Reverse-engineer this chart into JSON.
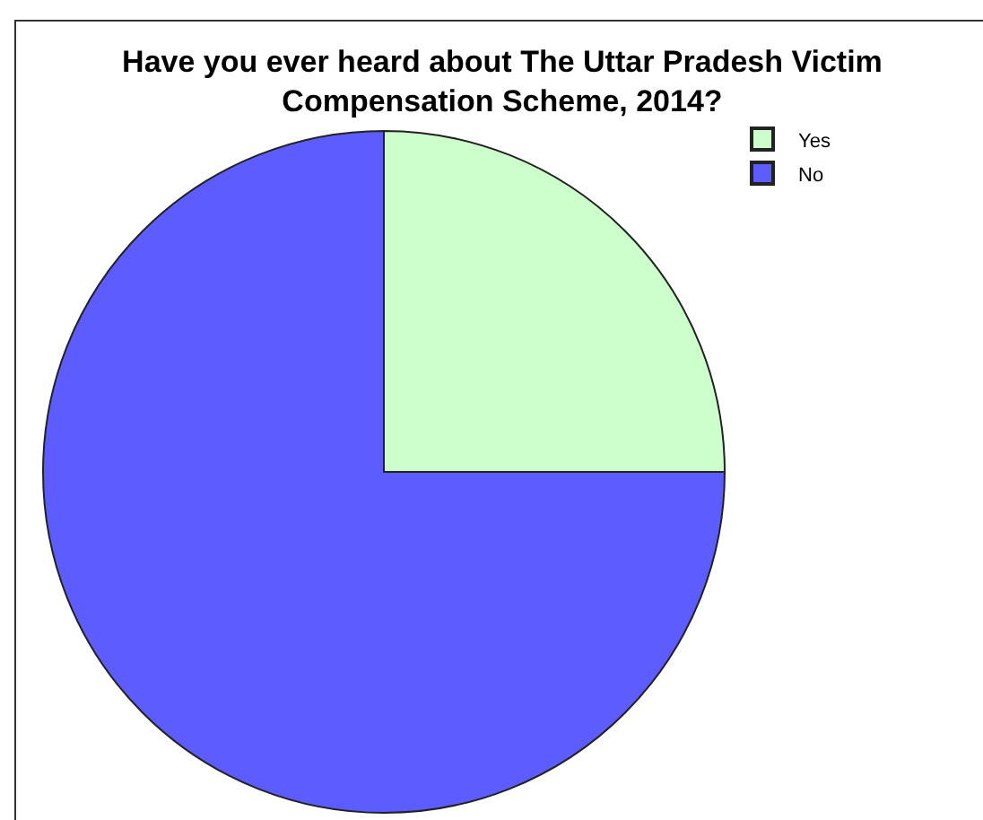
{
  "chart_data": {
    "type": "pie",
    "title": "Have you ever heard about The Uttar Pradesh Victim Compensation Scheme, 2014?",
    "categories": [
      "Yes",
      "No"
    ],
    "values": [
      25,
      75
    ],
    "colors": [
      "#ccffcc",
      "#5c5cff"
    ],
    "legend": "top right"
  }
}
